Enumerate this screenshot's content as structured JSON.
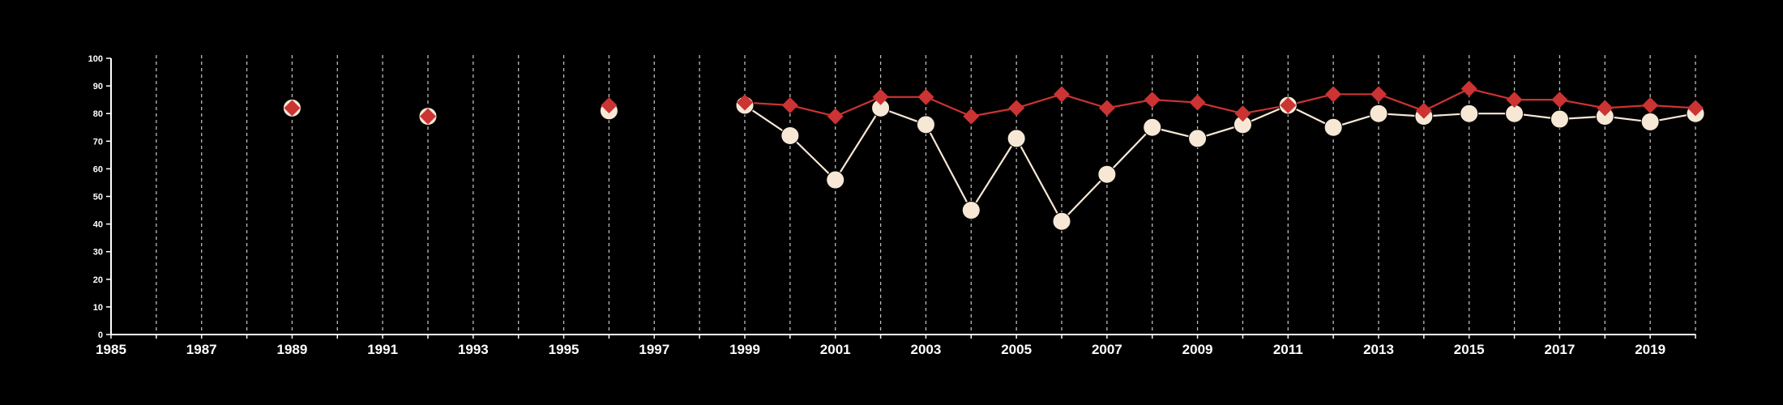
{
  "chart_data": {
    "type": "line",
    "x_axis": {
      "range": [
        1985,
        2020
      ],
      "tick_labels": [
        "1985",
        "1987",
        "1989",
        "1991",
        "1993",
        "1995",
        "1997",
        "1999",
        "2001",
        "2003",
        "2005",
        "2007",
        "2009",
        "2011",
        "2013",
        "2015",
        "2017",
        "2019"
      ],
      "vertical_grid": "dashed, every year"
    },
    "y_axis": {
      "range": [
        0,
        100
      ],
      "tick_labels": [
        "0",
        "10",
        "20",
        "30",
        "40",
        "50",
        "60",
        "70",
        "80",
        "90",
        "100"
      ]
    },
    "series": [
      {
        "marker": "circle",
        "color": "#f7e8d6",
        "points": [
          {
            "x": 1989,
            "y": 82
          },
          {
            "x": 1992,
            "y": 79
          },
          {
            "x": 1996,
            "y": 81
          },
          {
            "x": 1999,
            "y": 83
          },
          {
            "x": 2000,
            "y": 72
          },
          {
            "x": 2001,
            "y": 56
          },
          {
            "x": 2002,
            "y": 82
          },
          {
            "x": 2003,
            "y": 76
          },
          {
            "x": 2004,
            "y": 45
          },
          {
            "x": 2005,
            "y": 71
          },
          {
            "x": 2006,
            "y": 41
          },
          {
            "x": 2007,
            "y": 58
          },
          {
            "x": 2008,
            "y": 75
          },
          {
            "x": 2009,
            "y": 71
          },
          {
            "x": 2010,
            "y": 76
          },
          {
            "x": 2011,
            "y": 83
          },
          {
            "x": 2012,
            "y": 75
          },
          {
            "x": 2013,
            "y": 80
          },
          {
            "x": 2014,
            "y": 79
          },
          {
            "x": 2015,
            "y": 80
          },
          {
            "x": 2016,
            "y": 80
          },
          {
            "x": 2017,
            "y": 78
          },
          {
            "x": 2018,
            "y": 79
          },
          {
            "x": 2019,
            "y": 77
          },
          {
            "x": 2020,
            "y": 80
          }
        ],
        "connected_from_x": 1999
      },
      {
        "marker": "diamond",
        "color": "#cc3333",
        "points": [
          {
            "x": 1989,
            "y": 82
          },
          {
            "x": 1992,
            "y": 79
          },
          {
            "x": 1996,
            "y": 83
          },
          {
            "x": 1999,
            "y": 84
          },
          {
            "x": 2000,
            "y": 83
          },
          {
            "x": 2001,
            "y": 79
          },
          {
            "x": 2002,
            "y": 86
          },
          {
            "x": 2003,
            "y": 86
          },
          {
            "x": 2004,
            "y": 79
          },
          {
            "x": 2005,
            "y": 82
          },
          {
            "x": 2006,
            "y": 87
          },
          {
            "x": 2007,
            "y": 82
          },
          {
            "x": 2008,
            "y": 85
          },
          {
            "x": 2009,
            "y": 84
          },
          {
            "x": 2010,
            "y": 80
          },
          {
            "x": 2011,
            "y": 83
          },
          {
            "x": 2012,
            "y": 87
          },
          {
            "x": 2013,
            "y": 87
          },
          {
            "x": 2014,
            "y": 81
          },
          {
            "x": 2015,
            "y": 89
          },
          {
            "x": 2016,
            "y": 85
          },
          {
            "x": 2017,
            "y": 85
          },
          {
            "x": 2018,
            "y": 82
          },
          {
            "x": 2019,
            "y": 83
          },
          {
            "x": 2020,
            "y": 82
          }
        ],
        "connected_from_x": 1999
      }
    ],
    "colors": {
      "background": "#000000",
      "axis": "#ffffff",
      "grid": "#bbbbbb"
    }
  }
}
